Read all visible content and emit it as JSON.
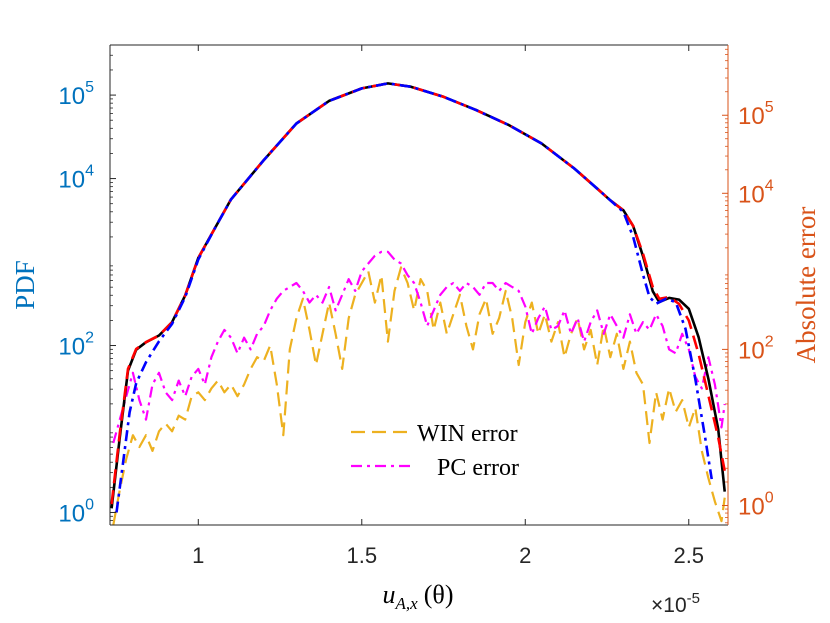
{
  "chart_data": {
    "type": "line",
    "xlabel": "u_{A,x} (θ)",
    "xlabel_parts": {
      "base": "u",
      "sub": "A,x",
      "arg": "(θ)"
    },
    "x_multiplier_base": "×10",
    "x_multiplier_exp": "-5",
    "xlim": [
      0.73,
      2.62
    ],
    "x_ticks": [
      1,
      1.5,
      2,
      2.5
    ],
    "x_tick_labels": [
      "1",
      "1.5",
      "2",
      "2.5"
    ],
    "left_axis": {
      "label": "PDF",
      "color": "#0072BD",
      "scale": "log",
      "ylim_log10": [
        -0.15,
        5.6
      ],
      "tick_exponents": [
        0,
        2,
        4,
        5
      ],
      "tick_base": "10"
    },
    "right_axis": {
      "label": "Absolute error",
      "color": "#D95319",
      "scale": "log",
      "ylim_log10": [
        -0.25,
        5.9
      ],
      "tick_exponents": [
        0,
        2,
        4,
        5
      ],
      "tick_base": "10"
    },
    "legend": {
      "position": "lower-center",
      "entries": [
        {
          "label": "WIN error",
          "series": "win_error"
        },
        {
          "label": "PC error",
          "series": "pc_error"
        }
      ]
    },
    "series": [
      {
        "name": "pdf_reference",
        "axis": "left",
        "color": "#000000",
        "dash": "solid",
        "points": [
          [
            0.735,
            0.05
          ],
          [
            0.76,
            0.9
          ],
          [
            0.785,
            1.7
          ],
          [
            0.81,
            1.95
          ],
          [
            0.84,
            2.04
          ],
          [
            0.88,
            2.12
          ],
          [
            0.92,
            2.28
          ],
          [
            0.96,
            2.6
          ],
          [
            1.0,
            3.05
          ],
          [
            1.05,
            3.4
          ],
          [
            1.1,
            3.75
          ],
          [
            1.2,
            4.22
          ],
          [
            1.3,
            4.66
          ],
          [
            1.4,
            4.93
          ],
          [
            1.5,
            5.08
          ],
          [
            1.58,
            5.14
          ],
          [
            1.65,
            5.1
          ],
          [
            1.75,
            4.98
          ],
          [
            1.85,
            4.82
          ],
          [
            1.95,
            4.64
          ],
          [
            2.05,
            4.42
          ],
          [
            2.15,
            4.12
          ],
          [
            2.22,
            3.88
          ],
          [
            2.26,
            3.74
          ],
          [
            2.3,
            3.62
          ],
          [
            2.33,
            3.43
          ],
          [
            2.36,
            3.07
          ],
          [
            2.39,
            2.65
          ],
          [
            2.41,
            2.52
          ],
          [
            2.44,
            2.57
          ],
          [
            2.47,
            2.55
          ],
          [
            2.5,
            2.44
          ],
          [
            2.53,
            2.1
          ],
          [
            2.56,
            1.6
          ],
          [
            2.59,
            1.0
          ],
          [
            2.61,
            0.25
          ]
        ]
      },
      {
        "name": "pdf_win",
        "axis": "left",
        "color": "#FF0000",
        "dash": "dashed",
        "points": [
          [
            0.735,
            0.1
          ],
          [
            0.76,
            0.95
          ],
          [
            0.785,
            1.72
          ],
          [
            0.81,
            1.96
          ],
          [
            0.84,
            2.04
          ],
          [
            0.88,
            2.12
          ],
          [
            0.92,
            2.28
          ],
          [
            0.96,
            2.6
          ],
          [
            1.0,
            3.05
          ],
          [
            1.05,
            3.4
          ],
          [
            1.1,
            3.75
          ],
          [
            1.2,
            4.22
          ],
          [
            1.3,
            4.66
          ],
          [
            1.4,
            4.93
          ],
          [
            1.5,
            5.08
          ],
          [
            1.58,
            5.14
          ],
          [
            1.65,
            5.1
          ],
          [
            1.75,
            4.98
          ],
          [
            1.85,
            4.82
          ],
          [
            1.95,
            4.64
          ],
          [
            2.05,
            4.42
          ],
          [
            2.15,
            4.12
          ],
          [
            2.22,
            3.88
          ],
          [
            2.26,
            3.74
          ],
          [
            2.3,
            3.62
          ],
          [
            2.33,
            3.43
          ],
          [
            2.36,
            3.1
          ],
          [
            2.39,
            2.7
          ],
          [
            2.41,
            2.56
          ],
          [
            2.44,
            2.58
          ],
          [
            2.47,
            2.5
          ],
          [
            2.5,
            2.3
          ],
          [
            2.53,
            1.9
          ],
          [
            2.56,
            1.4
          ],
          [
            2.59,
            0.9
          ],
          [
            2.61,
            0.5
          ]
        ]
      },
      {
        "name": "pdf_pc",
        "axis": "left",
        "color": "#0000FF",
        "dash": "dashdot",
        "points": [
          [
            0.75,
            0.0
          ],
          [
            0.77,
            0.6
          ],
          [
            0.79,
            1.2
          ],
          [
            0.81,
            1.55
          ],
          [
            0.84,
            1.8
          ],
          [
            0.88,
            2.05
          ],
          [
            0.92,
            2.26
          ],
          [
            0.96,
            2.58
          ],
          [
            1.0,
            3.03
          ],
          [
            1.05,
            3.4
          ],
          [
            1.1,
            3.75
          ],
          [
            1.2,
            4.22
          ],
          [
            1.3,
            4.66
          ],
          [
            1.4,
            4.93
          ],
          [
            1.5,
            5.08
          ],
          [
            1.58,
            5.14
          ],
          [
            1.65,
            5.1
          ],
          [
            1.75,
            4.98
          ],
          [
            1.85,
            4.82
          ],
          [
            1.95,
            4.64
          ],
          [
            2.05,
            4.42
          ],
          [
            2.15,
            4.12
          ],
          [
            2.22,
            3.88
          ],
          [
            2.26,
            3.74
          ],
          [
            2.3,
            3.6
          ],
          [
            2.33,
            3.3
          ],
          [
            2.36,
            2.85
          ],
          [
            2.38,
            2.58
          ],
          [
            2.4,
            2.5
          ],
          [
            2.43,
            2.56
          ],
          [
            2.46,
            2.52
          ],
          [
            2.49,
            2.2
          ],
          [
            2.52,
            1.6
          ],
          [
            2.55,
            0.9
          ],
          [
            2.57,
            0.4
          ]
        ]
      },
      {
        "name": "win_error",
        "axis": "right",
        "color": "#EDB120",
        "dash": "dashed",
        "points": [
          [
            0.74,
            -0.25
          ],
          [
            0.76,
            0.2
          ],
          [
            0.78,
            0.6
          ],
          [
            0.8,
            0.9
          ],
          [
            0.82,
            0.75
          ],
          [
            0.84,
            0.9
          ],
          [
            0.86,
            0.7
          ],
          [
            0.88,
            0.95
          ],
          [
            0.9,
            1.05
          ],
          [
            0.92,
            0.95
          ],
          [
            0.94,
            1.15
          ],
          [
            0.96,
            1.1
          ],
          [
            0.98,
            1.4
          ],
          [
            1.0,
            1.45
          ],
          [
            1.02,
            1.35
          ],
          [
            1.04,
            1.5
          ],
          [
            1.06,
            1.6
          ],
          [
            1.08,
            1.45
          ],
          [
            1.1,
            1.55
          ],
          [
            1.12,
            1.4
          ],
          [
            1.14,
            1.55
          ],
          [
            1.16,
            1.75
          ],
          [
            1.18,
            1.9
          ],
          [
            1.2,
            1.85
          ],
          [
            1.22,
            2.05
          ],
          [
            1.24,
            1.55
          ],
          [
            1.26,
            0.9
          ],
          [
            1.28,
            2.0
          ],
          [
            1.3,
            2.4
          ],
          [
            1.32,
            2.65
          ],
          [
            1.34,
            2.25
          ],
          [
            1.36,
            1.8
          ],
          [
            1.38,
            2.2
          ],
          [
            1.4,
            2.6
          ],
          [
            1.42,
            2.2
          ],
          [
            1.44,
            1.75
          ],
          [
            1.46,
            2.4
          ],
          [
            1.48,
            2.7
          ],
          [
            1.5,
            2.85
          ],
          [
            1.52,
            3.0
          ],
          [
            1.54,
            2.6
          ],
          [
            1.56,
            2.95
          ],
          [
            1.58,
            2.1
          ],
          [
            1.6,
            2.75
          ],
          [
            1.62,
            3.05
          ],
          [
            1.64,
            2.85
          ],
          [
            1.66,
            2.5
          ],
          [
            1.68,
            2.9
          ],
          [
            1.7,
            2.75
          ],
          [
            1.72,
            2.25
          ],
          [
            1.74,
            2.6
          ],
          [
            1.76,
            2.2
          ],
          [
            1.78,
            2.45
          ],
          [
            1.8,
            2.7
          ],
          [
            1.82,
            2.3
          ],
          [
            1.84,
            2.0
          ],
          [
            1.86,
            2.45
          ],
          [
            1.88,
            2.65
          ],
          [
            1.9,
            2.2
          ],
          [
            1.92,
            2.4
          ],
          [
            1.94,
            2.75
          ],
          [
            1.96,
            2.4
          ],
          [
            1.98,
            1.8
          ],
          [
            2.0,
            2.35
          ],
          [
            2.02,
            2.6
          ],
          [
            2.04,
            2.2
          ],
          [
            2.06,
            2.45
          ],
          [
            2.08,
            2.1
          ],
          [
            2.1,
            2.35
          ],
          [
            2.12,
            1.9
          ],
          [
            2.14,
            2.2
          ],
          [
            2.16,
            2.4
          ],
          [
            2.18,
            2.0
          ],
          [
            2.2,
            2.25
          ],
          [
            2.22,
            1.8
          ],
          [
            2.24,
            2.3
          ],
          [
            2.26,
            1.9
          ],
          [
            2.28,
            2.2
          ],
          [
            2.3,
            1.75
          ],
          [
            2.32,
            2.1
          ],
          [
            2.34,
            1.7
          ],
          [
            2.36,
            1.55
          ],
          [
            2.38,
            0.8
          ],
          [
            2.4,
            1.45
          ],
          [
            2.42,
            1.1
          ],
          [
            2.44,
            1.5
          ],
          [
            2.46,
            1.2
          ],
          [
            2.48,
            1.35
          ],
          [
            2.5,
            1.0
          ],
          [
            2.52,
            1.25
          ],
          [
            2.54,
            0.7
          ],
          [
            2.56,
            0.35
          ],
          [
            2.58,
            0.05
          ],
          [
            2.6,
            -0.2
          ],
          [
            2.61,
            0.1
          ]
        ]
      },
      {
        "name": "pc_error",
        "axis": "right",
        "color": "#FF00FF",
        "dash": "dashdot",
        "points": [
          [
            0.74,
            0.8
          ],
          [
            0.76,
            1.1
          ],
          [
            0.78,
            1.4
          ],
          [
            0.8,
            1.7
          ],
          [
            0.82,
            1.35
          ],
          [
            0.84,
            1.1
          ],
          [
            0.86,
            1.55
          ],
          [
            0.88,
            1.7
          ],
          [
            0.9,
            1.45
          ],
          [
            0.92,
            1.35
          ],
          [
            0.94,
            1.6
          ],
          [
            0.96,
            1.4
          ],
          [
            0.98,
            1.65
          ],
          [
            1.0,
            1.75
          ],
          [
            1.02,
            1.55
          ],
          [
            1.04,
            1.9
          ],
          [
            1.06,
            2.1
          ],
          [
            1.08,
            2.25
          ],
          [
            1.1,
            2.15
          ],
          [
            1.12,
            1.95
          ],
          [
            1.14,
            2.15
          ],
          [
            1.16,
            2.0
          ],
          [
            1.18,
            2.2
          ],
          [
            1.2,
            2.3
          ],
          [
            1.22,
            2.5
          ],
          [
            1.24,
            2.65
          ],
          [
            1.26,
            2.75
          ],
          [
            1.28,
            2.8
          ],
          [
            1.3,
            2.85
          ],
          [
            1.32,
            2.75
          ],
          [
            1.34,
            2.6
          ],
          [
            1.36,
            2.7
          ],
          [
            1.38,
            2.6
          ],
          [
            1.4,
            2.8
          ],
          [
            1.42,
            2.5
          ],
          [
            1.44,
            2.7
          ],
          [
            1.46,
            2.9
          ],
          [
            1.48,
            2.75
          ],
          [
            1.5,
            3.0
          ],
          [
            1.52,
            3.1
          ],
          [
            1.54,
            3.2
          ],
          [
            1.56,
            3.25
          ],
          [
            1.58,
            3.25
          ],
          [
            1.6,
            3.15
          ],
          [
            1.62,
            3.1
          ],
          [
            1.64,
            2.95
          ],
          [
            1.66,
            2.85
          ],
          [
            1.68,
            2.6
          ],
          [
            1.7,
            2.3
          ],
          [
            1.72,
            2.5
          ],
          [
            1.74,
            2.7
          ],
          [
            1.76,
            2.8
          ],
          [
            1.78,
            2.85
          ],
          [
            1.8,
            2.75
          ],
          [
            1.82,
            2.85
          ],
          [
            1.84,
            2.8
          ],
          [
            1.86,
            2.7
          ],
          [
            1.88,
            2.85
          ],
          [
            1.9,
            2.85
          ],
          [
            1.92,
            2.75
          ],
          [
            1.94,
            2.85
          ],
          [
            1.96,
            2.8
          ],
          [
            1.98,
            2.75
          ],
          [
            2.0,
            2.55
          ],
          [
            2.02,
            2.2
          ],
          [
            2.04,
            2.4
          ],
          [
            2.06,
            2.55
          ],
          [
            2.08,
            2.25
          ],
          [
            2.1,
            2.3
          ],
          [
            2.12,
            2.5
          ],
          [
            2.14,
            2.2
          ],
          [
            2.16,
            2.4
          ],
          [
            2.18,
            2.1
          ],
          [
            2.2,
            2.35
          ],
          [
            2.22,
            2.5
          ],
          [
            2.24,
            2.2
          ],
          [
            2.26,
            2.45
          ],
          [
            2.28,
            2.3
          ],
          [
            2.3,
            2.15
          ],
          [
            2.32,
            2.45
          ],
          [
            2.34,
            2.2
          ],
          [
            2.36,
            2.35
          ],
          [
            2.38,
            2.25
          ],
          [
            2.4,
            2.45
          ],
          [
            2.42,
            2.3
          ],
          [
            2.44,
            2.0
          ],
          [
            2.46,
            1.95
          ],
          [
            2.48,
            2.2
          ],
          [
            2.5,
            2.0
          ],
          [
            2.52,
            1.65
          ],
          [
            2.54,
            1.5
          ],
          [
            2.56,
            1.9
          ],
          [
            2.58,
            1.55
          ],
          [
            2.6,
            1.0
          ],
          [
            2.61,
            1.3
          ]
        ]
      }
    ]
  }
}
